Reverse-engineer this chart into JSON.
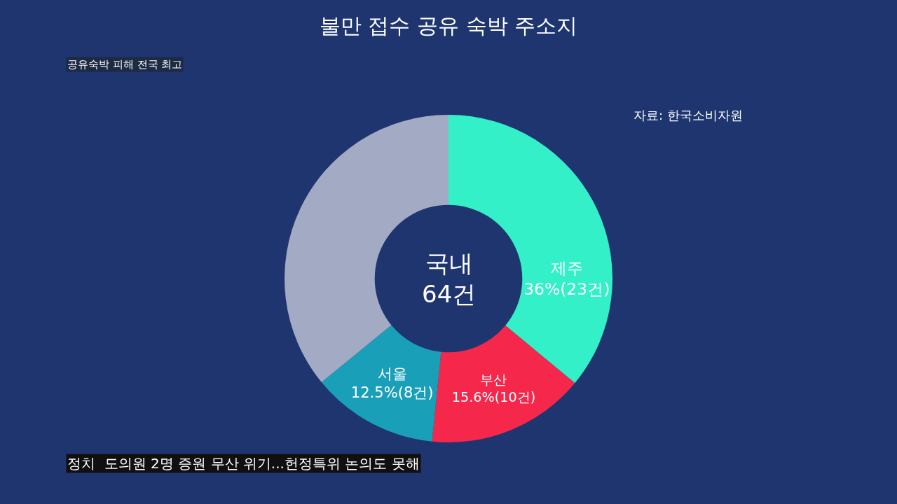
{
  "chart_data": {
    "type": "donut",
    "title": "불만 접수 공유 숙박 주소지",
    "categories": [
      "제주",
      "부산",
      "서울",
      null
    ],
    "values": [
      36,
      15.6,
      12.5,
      35.9
    ],
    "value_labels": [
      "36%(23건)",
      "15.6%(10건)",
      "12.5%(8건)",
      null
    ],
    "colors": [
      "#33f0c8",
      "#f5284c",
      "#1a9fb8",
      "#a3aac4"
    ],
    "annotations": [
      "공유숙박 피해 전국 최고",
      "자료: 한국소비자원",
      "국내\n64건",
      "정치  도의원 2명 증원 무산 위기...헌정특위 논의도 못해"
    ],
    "legend": false
  }
}
